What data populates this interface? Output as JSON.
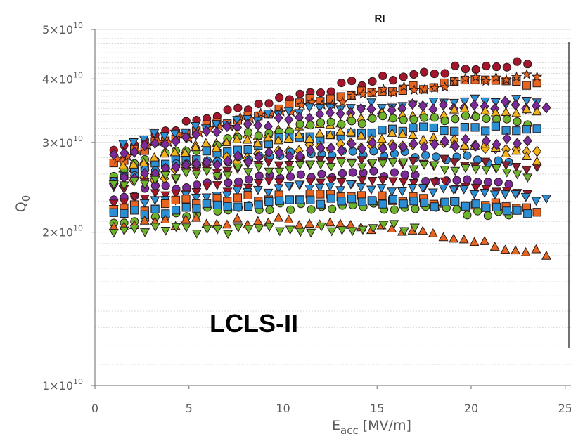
{
  "chart_data": {
    "type": "scatter",
    "title": "RI",
    "annotation": "LCLS-II",
    "xlabel": {
      "main": "E",
      "sub": "acc",
      "unit": " [MV/m]"
    },
    "ylabel": {
      "main": "Q",
      "sub": "0"
    },
    "xlim": [
      0,
      25
    ],
    "ylim": [
      10000000000.0,
      50000000000.0
    ],
    "yscale": "log",
    "grid": true,
    "x_ticks": [
      0,
      5,
      10,
      15,
      20,
      25
    ],
    "x_tick_labels": [
      "0",
      "5",
      "10",
      "15",
      "20",
      "25"
    ],
    "y_ticks": [
      {
        "value": 10000000000,
        "mantissa": "1×10",
        "exp": "10"
      },
      {
        "value": 20000000000,
        "mantissa": "2×10",
        "exp": "10"
      },
      {
        "value": 30000000000,
        "mantissa": "3×10",
        "exp": "10"
      },
      {
        "value": 40000000000,
        "mantissa": "4×10",
        "exp": "10"
      },
      {
        "value": 50000000000,
        "mantissa": "5×10",
        "exp": "10"
      }
    ],
    "colors": {
      "darkred": "#a3162b",
      "orange": "#e8651f",
      "yellow": "#f2b21b",
      "green": "#6bb42c",
      "blue": "#2a8fd3",
      "purple": "#7b2a99",
      "maroon": "#8e1f2f"
    },
    "series": [
      {
        "color": "darkred",
        "marker": "circle",
        "x_start": 1.0,
        "x_end": 23.0,
        "q_start": 29000000000.0,
        "q_mid": 38000000000.0,
        "q_end": 43000000000.0,
        "drift": 0.0
      },
      {
        "color": "orange",
        "marker": "square",
        "x_start": 1.0,
        "x_end": 23.5,
        "q_start": 27500000000.0,
        "q_mid": 36500000000.0,
        "q_end": 39500000000.0,
        "drift": 0.0
      },
      {
        "color": "orange",
        "marker": "star",
        "x_start": 1.2,
        "x_end": 23.5,
        "q_start": 28000000000.0,
        "q_mid": 36000000000.0,
        "q_end": 41000000000.0,
        "drift": 0.0
      },
      {
        "color": "blue",
        "marker": "triangle-down",
        "x_start": 1.5,
        "x_end": 23.5,
        "q_start": 30000000000.0,
        "q_mid": 35000000000.0,
        "q_end": 36000000000.0,
        "drift": -0.04
      },
      {
        "color": "purple",
        "marker": "diamond",
        "x_start": 1.0,
        "x_end": 24.0,
        "q_start": 28000000000.0,
        "q_mid": 34000000000.0,
        "q_end": 35500000000.0,
        "drift": -0.02
      },
      {
        "color": "yellow",
        "marker": "triangle-up",
        "x_start": 1.5,
        "x_end": 23.5,
        "q_start": 26500000000.0,
        "q_mid": 33000000000.0,
        "q_end": 34500000000.0,
        "drift": -0.03
      },
      {
        "color": "green",
        "marker": "circle",
        "x_start": 1.0,
        "x_end": 23.0,
        "q_start": 26000000000.0,
        "q_mid": 32500000000.0,
        "q_end": 33000000000.0,
        "drift": -0.05
      },
      {
        "color": "blue",
        "marker": "square",
        "x_start": 1.0,
        "x_end": 23.5,
        "q_start": 25500000000.0,
        "q_mid": 31000000000.0,
        "q_end": 32000000000.0,
        "drift": -0.04
      },
      {
        "color": "yellow",
        "marker": "diamond",
        "x_start": 1.5,
        "x_end": 23.5,
        "q_start": 24500000000.0,
        "q_mid": 29500000000.0,
        "q_end": 29000000000.0,
        "drift": -0.06
      },
      {
        "color": "blue",
        "marker": "circle",
        "x_start": 1.0,
        "x_end": 22.0,
        "q_start": 25500000000.0,
        "q_mid": 28500000000.0,
        "q_end": 27500000000.0,
        "drift": -0.03
      },
      {
        "color": "maroon",
        "marker": "triangle-down",
        "x_start": 1.0,
        "x_end": 23.5,
        "q_start": 24500000000.0,
        "q_mid": 27500000000.0,
        "q_end": 26500000000.0,
        "drift": -0.03
      },
      {
        "color": "purple",
        "marker": "circle",
        "x_start": 1.0,
        "x_end": 22.0,
        "q_start": 23500000000.0,
        "q_mid": 26000000000.0,
        "q_end": 24500000000.0,
        "drift": -0.02
      },
      {
        "color": "darkred",
        "marker": "triangle-down",
        "x_start": 1.0,
        "x_end": 23.0,
        "q_start": 23000000000.0,
        "q_mid": 25000000000.0,
        "q_end": 24000000000.0,
        "drift": -0.02
      },
      {
        "color": "blue",
        "marker": "triangle-down",
        "x_start": 1.0,
        "x_end": 24.0,
        "q_start": 22500000000.0,
        "q_mid": 24500000000.0,
        "q_end": 23000000000.0,
        "drift": -0.02
      },
      {
        "color": "orange",
        "marker": "square",
        "x_start": 1.0,
        "x_end": 23.5,
        "q_start": 22000000000.0,
        "q_mid": 23500000000.0,
        "q_end": 22000000000.0,
        "drift": -0.02
      },
      {
        "color": "green",
        "marker": "circle",
        "x_start": 1.0,
        "x_end": 22.0,
        "q_start": 21000000000.0,
        "q_mid": 22500000000.0,
        "q_end": 21500000000.0,
        "drift": -0.02
      },
      {
        "color": "blue",
        "marker": "square",
        "x_start": 1.0,
        "x_end": 23.0,
        "q_start": 21500000000.0,
        "q_mid": 23000000000.0,
        "q_end": 22000000000.0,
        "drift": -0.01
      },
      {
        "color": "orange",
        "marker": "triangle-up",
        "x_start": 1.0,
        "x_end": 24.0,
        "q_start": 20500000000.0,
        "q_mid": 20800000000.0,
        "q_end": 18000000000.0,
        "drift": -0.01
      },
      {
        "color": "green",
        "marker": "triangle-down",
        "x_start": 1.0,
        "x_end": 17.0,
        "q_start": 20200000000.0,
        "q_mid": 20200000000.0,
        "q_end": 20500000000.0,
        "drift": 0.0
      },
      {
        "color": "yellow",
        "marker": "triangle-up",
        "x_start": 1.5,
        "x_end": 23.5,
        "q_start": 27000000000.0,
        "q_mid": 31000000000.0,
        "q_end": 28000000000.0,
        "drift": 0.0
      },
      {
        "color": "purple",
        "marker": "diamond",
        "x_start": 1.0,
        "x_end": 23.0,
        "q_start": 25000000000.0,
        "q_mid": 29000000000.0,
        "q_end": 30000000000.0,
        "drift": 0.0
      },
      {
        "color": "green",
        "marker": "triangle-down",
        "x_start": 1.0,
        "x_end": 23.0,
        "q_start": 24500000000.0,
        "q_mid": 27000000000.0,
        "q_end": 26000000000.0,
        "drift": 0.0
      }
    ]
  }
}
